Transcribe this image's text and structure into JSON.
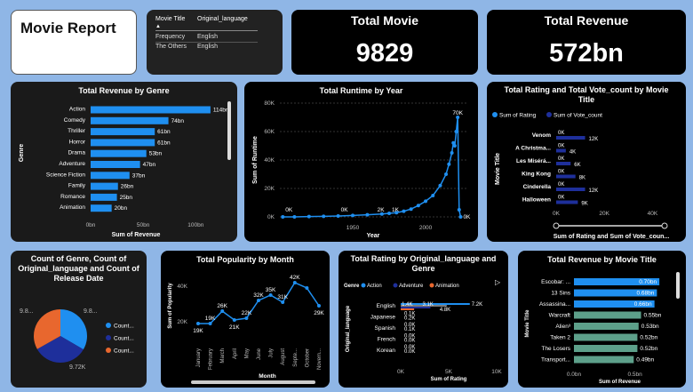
{
  "report_title": "Movie Report",
  "slicer": {
    "col1": "Movie Title",
    "col2": "Original_language",
    "rows": [
      {
        "label": "Frequency",
        "value": "English"
      },
      {
        "label": "The Others",
        "value": "English"
      }
    ]
  },
  "kpi_movies": {
    "label": "Total Movie",
    "value": "9829"
  },
  "kpi_revenue": {
    "label": "Total Revenue",
    "value": "572bn"
  },
  "colors": {
    "bar_blue": "#1f8ff0",
    "dark_blue": "#1e2f9b",
    "orange": "#e8672e",
    "teal_bar": "#5da08a",
    "bg": "#0d0d0d"
  },
  "revenue_by_genre": {
    "title": "Total Revenue by Genre",
    "xlabel": "Sum of Revenue",
    "ylabel": "Genre",
    "ticks": [
      "0bn",
      "50bn",
      "100bn"
    ],
    "chart_data": {
      "type": "bar",
      "categories": [
        "Action",
        "Comedy",
        "Thriller",
        "Horror",
        "Drama",
        "Adventure",
        "Science Fiction",
        "Family",
        "Romance",
        "Animation"
      ],
      "values": [
        114,
        74,
        61,
        61,
        53,
        47,
        37,
        26,
        25,
        20
      ],
      "labels": [
        "114bn",
        "74bn",
        "61bn",
        "61bn",
        "53bn",
        "47bn",
        "37bn",
        "26bn",
        "25bn",
        "20bn"
      ],
      "xlim": [
        0,
        120
      ]
    }
  },
  "runtime_by_year": {
    "title": "Total Runtime by Year",
    "xlabel": "Year",
    "ylabel": "Sum of Runtime",
    "yticks": [
      "0K",
      "20K",
      "40K",
      "60K",
      "80K"
    ],
    "xticks": [
      "1950",
      "2000"
    ],
    "annotations": [
      "0K",
      "0K",
      "2K",
      "1K",
      "70K",
      "0K"
    ],
    "chart_data": {
      "type": "line",
      "x": [
        1902,
        1910,
        1920,
        1930,
        1940,
        1950,
        1960,
        1970,
        1975,
        1980,
        1985,
        1990,
        1995,
        2000,
        2005,
        2010,
        2014,
        2016,
        2018,
        2019,
        2020,
        2021,
        2022,
        2023,
        2024
      ],
      "y": [
        0,
        0,
        0.2,
        0.4,
        0.6,
        1,
        1.5,
        2,
        2.5,
        3,
        4,
        5.5,
        8,
        11,
        15,
        22,
        30,
        37,
        45,
        52,
        50,
        60,
        70,
        5,
        0
      ],
      "xlim": [
        1900,
        2028
      ],
      "ylim": [
        0,
        80
      ]
    }
  },
  "rating_vote": {
    "title": "Total Rating and Total Vote_count by Movie Title",
    "xlabel": "Sum of Rating and Sum of Vote_coun...",
    "ylabel": "Movie Title",
    "legend": [
      "Sum of Rating",
      "Sum of Vote_count"
    ],
    "ticks": [
      "0K",
      "20K",
      "40K"
    ],
    "chart_data": {
      "type": "bar",
      "categories": [
        "Venom",
        "A Christma...",
        "Les Misérá...",
        "King Kong",
        "Cinderella",
        "Halloween"
      ],
      "series": [
        {
          "name": "Sum of Rating",
          "values": [
            0,
            0,
            0,
            0,
            0,
            0
          ]
        },
        {
          "name": "Sum of Vote_count",
          "values": [
            12,
            4,
            6,
            8,
            12,
            9
          ]
        }
      ],
      "labels_rating": [
        "0K",
        "0K",
        "0K",
        "0K",
        "0K",
        "0K"
      ],
      "labels_vote": [
        "12K",
        "4K",
        "6K",
        "8K",
        "12K",
        "9K"
      ],
      "xlim": [
        0,
        45
      ]
    }
  },
  "count_pie": {
    "title": "Count of Genre, Count of Original_language and Count of Release Date",
    "labels": [
      "9.8...",
      "9.8...",
      "9.72K"
    ],
    "legend": [
      "Count...",
      "Count...",
      "Count..."
    ],
    "chart_data": {
      "type": "pie",
      "categories": [
        "Count of Genre",
        "Count of Original_language",
        "Count of Release Date"
      ],
      "values": [
        9.8,
        9.8,
        9.72
      ]
    }
  },
  "popularity_by_month": {
    "title": "Total Popularity by Month",
    "xlabel": "Month",
    "ylabel": "Sum of Popularity",
    "yticks": [
      "20K",
      "40K"
    ],
    "chart_data": {
      "type": "line",
      "categories": [
        "January",
        "February",
        "March",
        "April",
        "May",
        "June",
        "July",
        "August",
        "Septe...",
        "October",
        "Novem..."
      ],
      "values": [
        19,
        19,
        26,
        21,
        22,
        32,
        35,
        31,
        42,
        39,
        29
      ],
      "labels": [
        "19K",
        "19K",
        "26K",
        "21K",
        "22K",
        "32K",
        "35K",
        "31K",
        "42K",
        "",
        "29K"
      ],
      "ylim": [
        10,
        45
      ]
    }
  },
  "rating_by_language": {
    "title": "Total Rating by Original_language and Genre",
    "legend_title": "Genre",
    "legend": [
      "Action",
      "Adventure",
      "Animation"
    ],
    "xlabel": "Sum of Rating",
    "ylabel": "Original_language",
    "ticks": [
      "0K",
      "5K",
      "10K"
    ],
    "chart_data": {
      "type": "bar",
      "categories": [
        "English",
        "Japanese",
        "Spanish",
        "French",
        "Korean"
      ],
      "series": [
        {
          "name": "Action",
          "values": [
            7.2,
            0.1,
            0.0,
            0.0,
            0.0
          ]
        },
        {
          "name": "Adventure",
          "values": [
            3.1,
            0.0,
            0.0,
            0.0,
            0.0
          ]
        },
        {
          "name": "Animation",
          "values": [
            1.4,
            0.0,
            0.0,
            0.0,
            0.0
          ]
        }
      ],
      "labels": [
        [
          "1.4K",
          "3.1K",
          "4.8K",
          "7.2K"
        ],
        [
          "0.1K",
          "0.2K"
        ],
        [
          "0.0K",
          "0.1K"
        ],
        [
          "0.0K",
          "0.0K"
        ],
        [
          "0.0K",
          "0.0K"
        ]
      ],
      "xlim": [
        0,
        10
      ]
    }
  },
  "revenue_by_title": {
    "title": "Total Revenue by Movie Title",
    "xlabel": "Sum of Revenue",
    "ylabel": "Movie Title",
    "ticks": [
      "0.0bn",
      "0.5bn"
    ],
    "chart_data": {
      "type": "bar",
      "categories": [
        "Escobar: ...",
        "13 Sins",
        "Assassina...",
        "Warcraft",
        "Alien³",
        "Taken 2",
        "The Losers",
        "Transport..."
      ],
      "values": [
        0.7,
        0.68,
        0.66,
        0.55,
        0.53,
        0.52,
        0.52,
        0.49
      ],
      "labels": [
        "0.70bn",
        "0.68bn",
        "0.66bn",
        "0.55bn",
        "0.53bn",
        "0.52bn",
        "0.52bn",
        "0.49bn"
      ],
      "xlim": [
        0,
        0.75
      ]
    }
  }
}
